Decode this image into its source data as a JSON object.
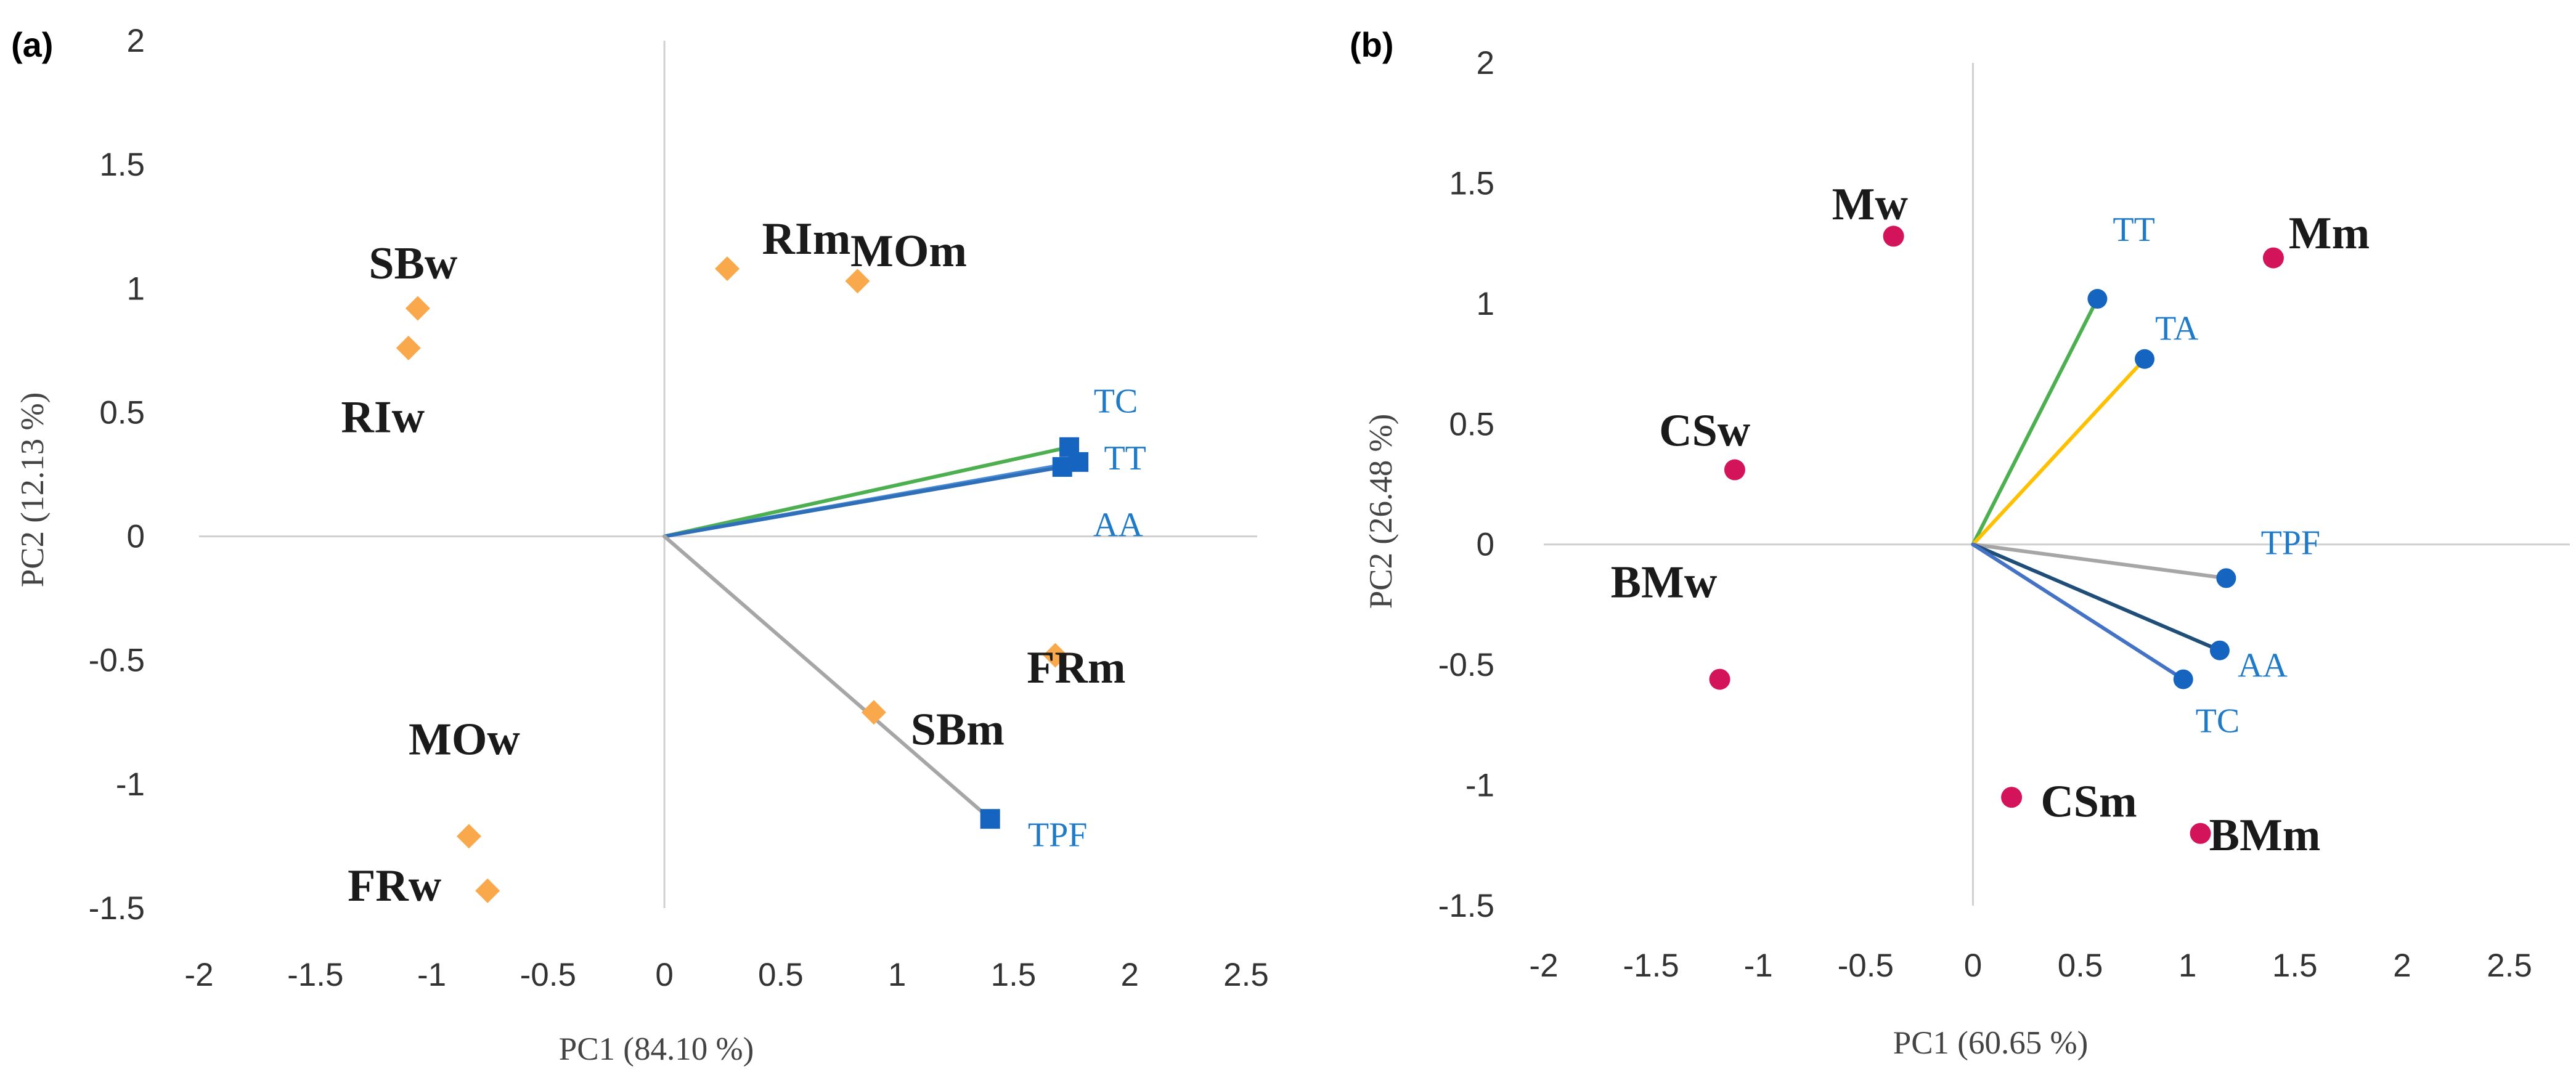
{
  "chart_data": [
    {
      "type": "scatter",
      "subtype": "biplot",
      "panel": "(a)",
      "xlabel": "PC1 (84.10 %)",
      "ylabel": "PC2 (12.13 %)",
      "xlim": [
        -2,
        2.5
      ],
      "ylim": [
        -1.5,
        2
      ],
      "xticks": [
        -2,
        -1.5,
        -1,
        -0.5,
        0,
        0.5,
        1,
        1.5,
        2,
        2.5
      ],
      "yticks": [
        -1.5,
        -1,
        -0.5,
        0,
        0.5,
        1,
        1.5,
        2
      ],
      "xtick_labels": [
        "-2",
        "-1.5",
        "-1",
        "-0.5",
        "0",
        "0.5",
        "1",
        "1.5",
        "2",
        "2.5"
      ],
      "ytick_labels": [
        "-1.5",
        "-1",
        "-0.5",
        "0",
        "0.5",
        "1",
        "1.5",
        "2"
      ],
      "observation_marker": "diamond",
      "observation_color": "#f9a94b",
      "observations": [
        {
          "label": "SBw",
          "x": -1.06,
          "y": 0.92
        },
        {
          "label": "RIw",
          "x": -1.1,
          "y": 0.76
        },
        {
          "label": "RIm",
          "x": 0.27,
          "y": 1.08
        },
        {
          "label": "MOm",
          "x": 0.83,
          "y": 1.03
        },
        {
          "label": "FRm",
          "x": 1.68,
          "y": -0.48
        },
        {
          "label": "SBm",
          "x": 0.9,
          "y": -0.71
        },
        {
          "label": "MOw",
          "x": -0.84,
          "y": -1.21
        },
        {
          "label": "FRw",
          "x": -0.76,
          "y": -1.43
        }
      ],
      "variable_marker": "square",
      "variable_marker_color": "#1565c0",
      "variables": [
        {
          "label": "TC",
          "x": 1.74,
          "y": 0.36,
          "line_color": "#4caf50"
        },
        {
          "label": "TT",
          "x": 1.78,
          "y": 0.3,
          "line_color": "#4a8bd8"
        },
        {
          "label": "AA",
          "x": 1.71,
          "y": 0.28,
          "line_color": "#2e6fb8"
        },
        {
          "label": "TPF",
          "x": 1.4,
          "y": -1.14,
          "line_color": "#a6a6a6"
        }
      ]
    },
    {
      "type": "scatter",
      "subtype": "biplot",
      "panel": "(b)",
      "xlabel": "PC1 (60.65 %)",
      "ylabel": "PC2 (26.48 %)",
      "xlim": [
        -2,
        2.5
      ],
      "ylim": [
        -1.5,
        2
      ],
      "xticks": [
        -2,
        -1.5,
        -1,
        -0.5,
        0,
        0.5,
        1,
        1.5,
        2,
        2.5
      ],
      "yticks": [
        -1.5,
        -1,
        -0.5,
        0,
        0.5,
        1,
        1.5,
        2
      ],
      "xtick_labels": [
        "-2",
        "-1.5",
        "-1",
        "-0.5",
        "0",
        "0.5",
        "1",
        "1.5",
        "2",
        "2.5"
      ],
      "ytick_labels": [
        "-1.5",
        "-1",
        "-0.5",
        "0",
        "0.5",
        "1",
        "1.5",
        "2"
      ],
      "observation_marker": "circle",
      "observation_color": "#d4145a",
      "observations": [
        {
          "label": "Mw",
          "x": -0.37,
          "y": 1.28
        },
        {
          "label": "Mm",
          "x": 1.4,
          "y": 1.19
        },
        {
          "label": "CSw",
          "x": -1.11,
          "y": 0.31
        },
        {
          "label": "BMw",
          "x": -1.18,
          "y": -0.56
        },
        {
          "label": "CSm",
          "x": 0.18,
          "y": -1.05
        },
        {
          "label": "BMm",
          "x": 1.06,
          "y": -1.2
        }
      ],
      "variable_marker": "circle",
      "variable_marker_color": "#1565c0",
      "variables": [
        {
          "label": "TT",
          "x": 0.58,
          "y": 1.02,
          "line_color": "#4caf50"
        },
        {
          "label": "TA",
          "x": 0.8,
          "y": 0.77,
          "line_color": "#ffc000"
        },
        {
          "label": "TPF",
          "x": 1.18,
          "y": -0.14,
          "line_color": "#a6a6a6"
        },
        {
          "label": "AA",
          "x": 1.15,
          "y": -0.44,
          "line_color": "#1f4e79"
        },
        {
          "label": "TC",
          "x": 0.98,
          "y": -0.56,
          "line_color": "#4472c4"
        }
      ]
    }
  ]
}
